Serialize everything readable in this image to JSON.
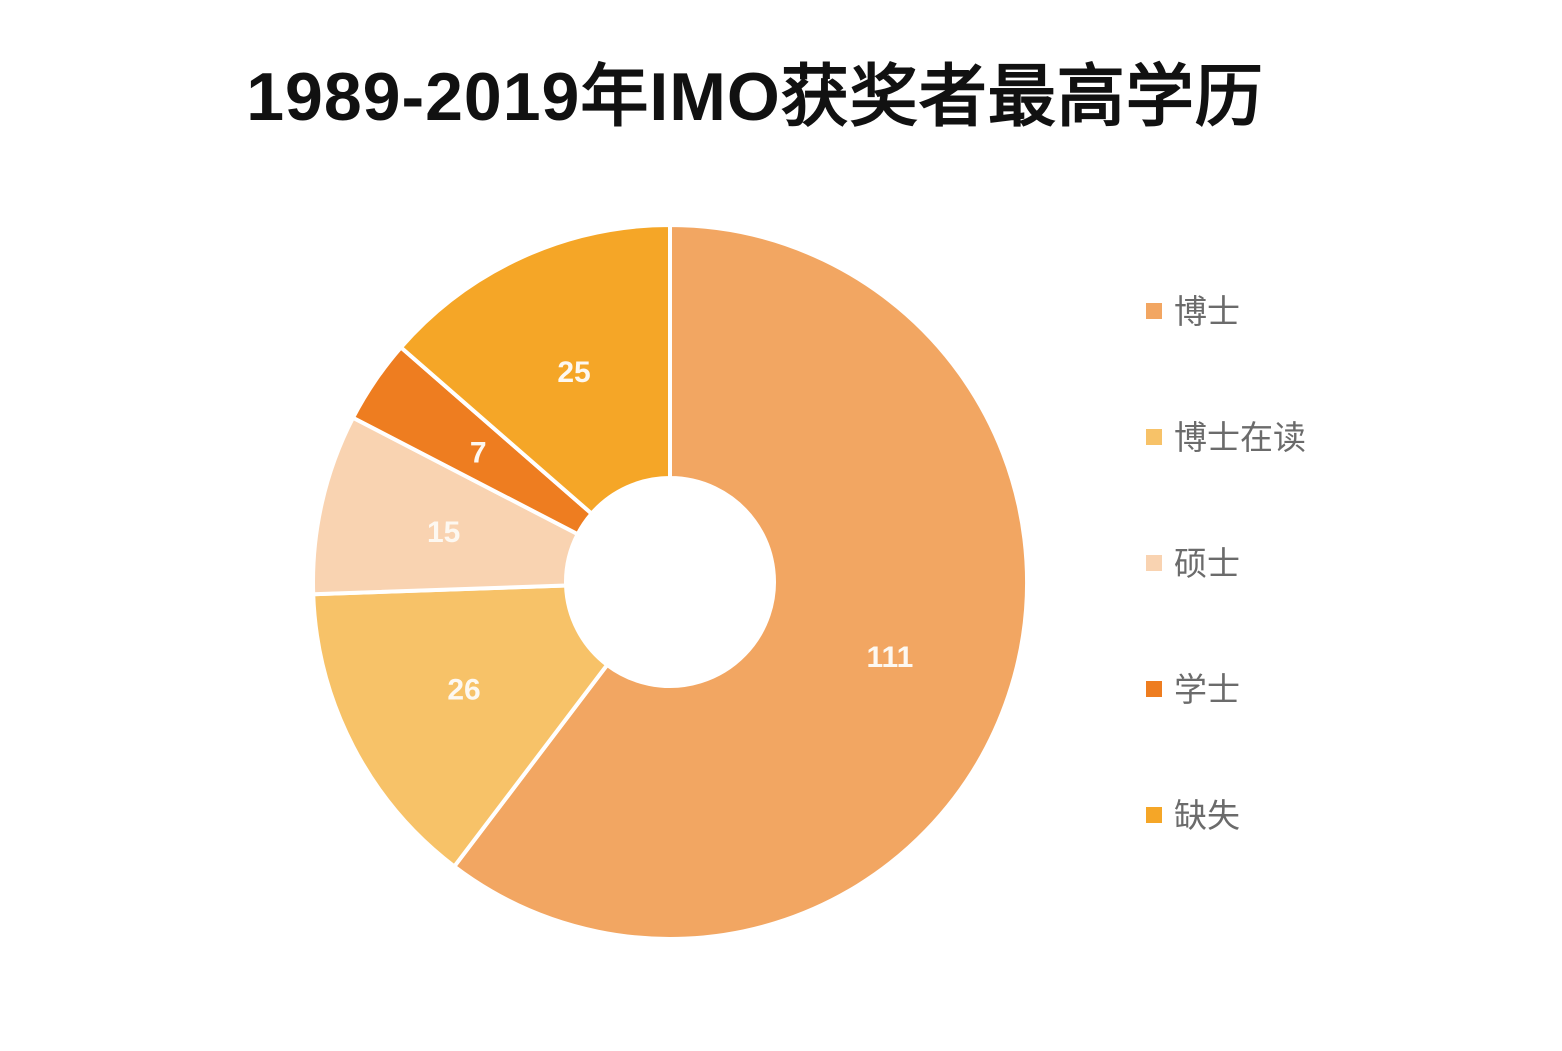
{
  "title": "1989-2019年IMO获奖者最高学历",
  "chart_data": {
    "type": "pie",
    "subtype": "donut",
    "title": "1989-2019年IMO获奖者最高学历",
    "categories": [
      "博士",
      "博士在读",
      "硕士",
      "学士",
      "缺失"
    ],
    "values": [
      111,
      26,
      15,
      7,
      25
    ],
    "colors": [
      "#F2A662",
      "#F7C268",
      "#F9D3B1",
      "#EE7D20",
      "#F5A627"
    ],
    "slugs": [
      "phd",
      "phd-in-progress",
      "masters",
      "bachelors",
      "missing"
    ],
    "total": 184,
    "start_angle_deg": 0,
    "start_position": "12-oclock",
    "direction": "clockwise",
    "inner_radius_ratio": 0.29,
    "value_label_style": "absolute counts in white inside slices",
    "legend_position": "right",
    "legend_text_color": "#6B6B6B",
    "slice_border_color": "#FFFFFF",
    "background_color": "#FFFFFF",
    "title_color": "#111111"
  },
  "legend": {
    "items": [
      {
        "label": "博士"
      },
      {
        "label": "博士在读"
      },
      {
        "label": "硕士"
      },
      {
        "label": "学士"
      },
      {
        "label": "缺失"
      }
    ]
  }
}
